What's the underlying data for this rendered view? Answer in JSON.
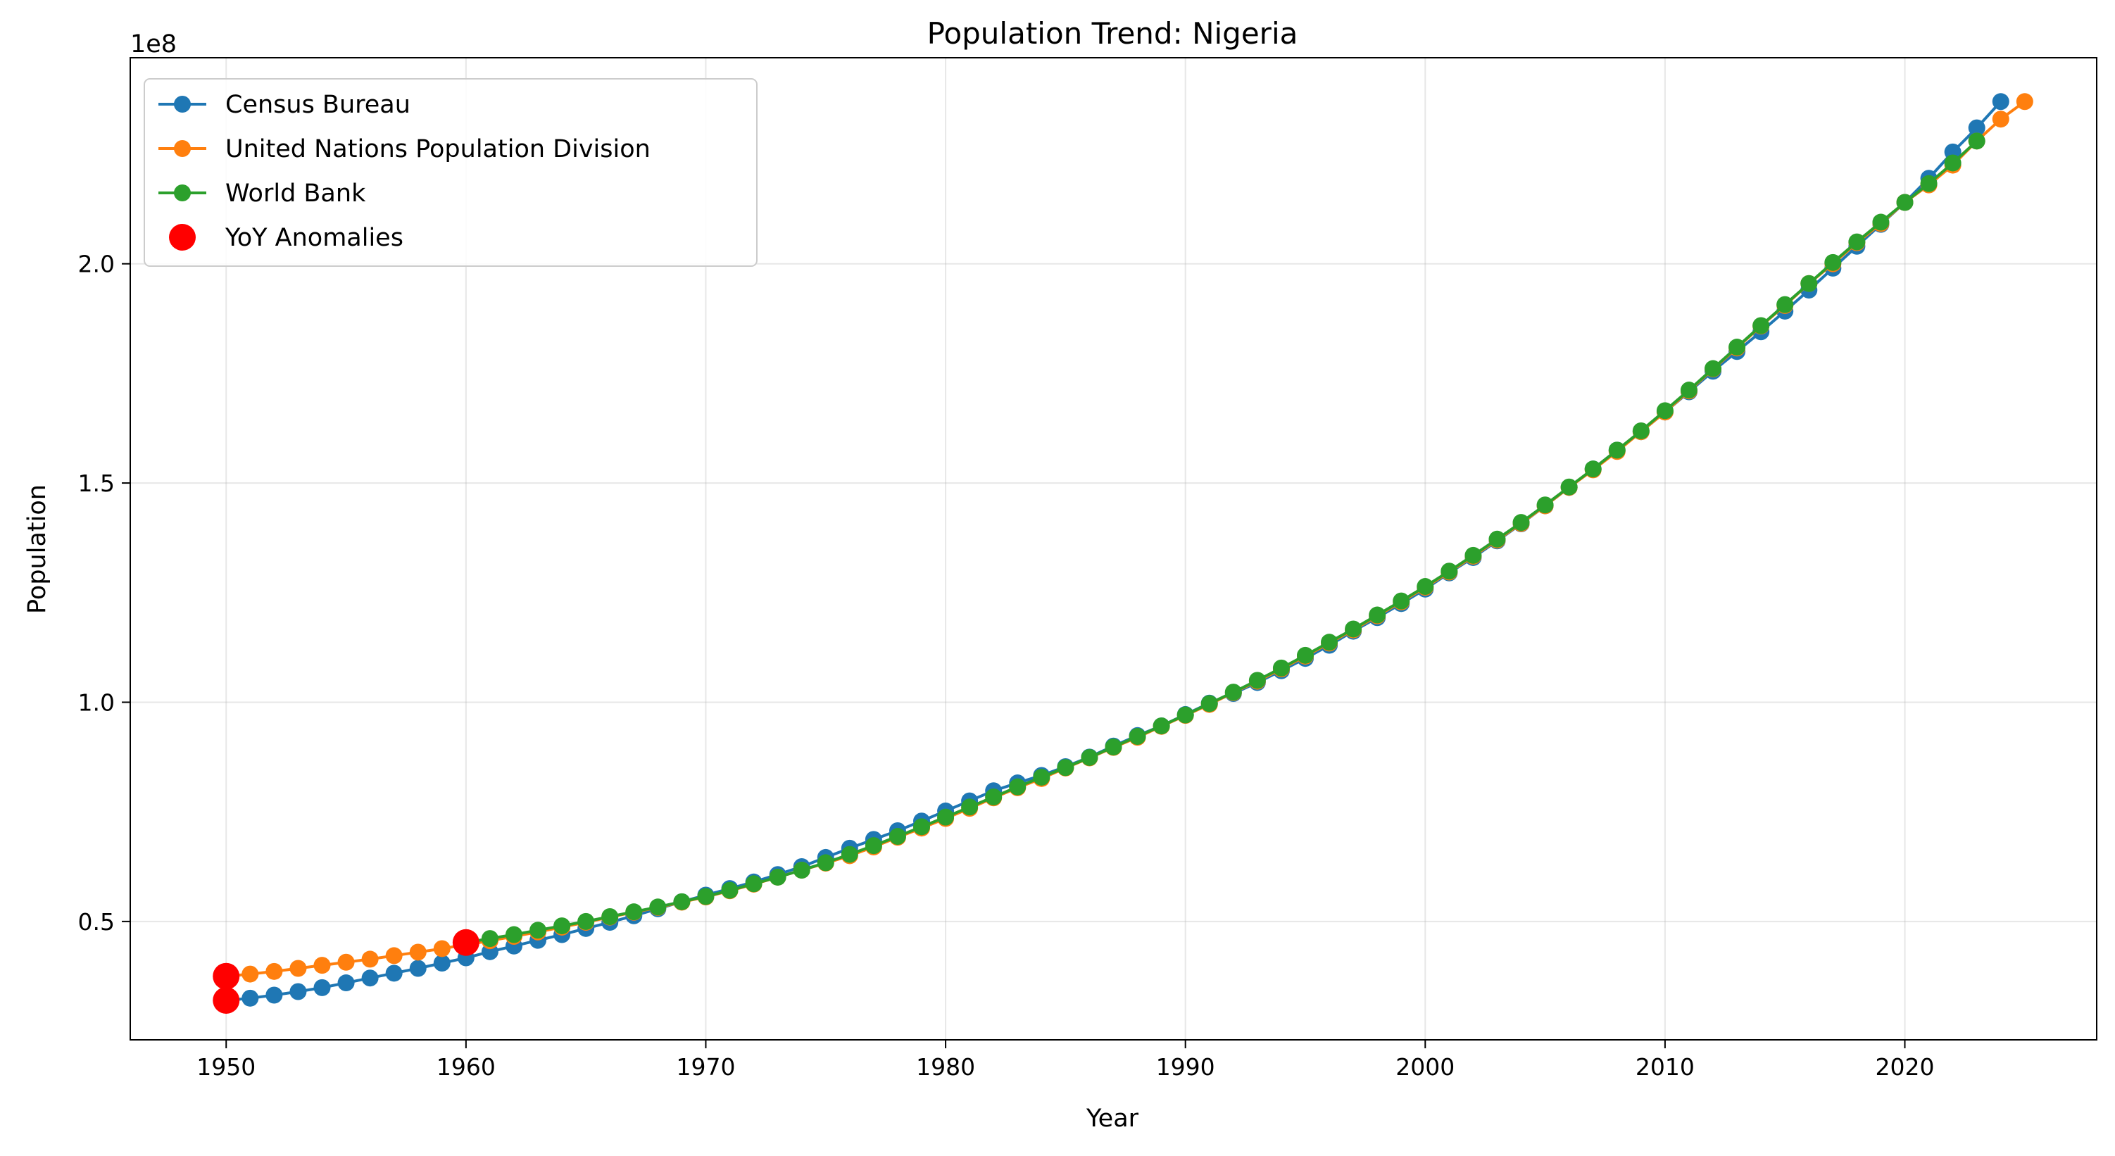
{
  "chart_data": {
    "type": "line",
    "title": "Population Trend: Nigeria",
    "xlabel": "Year",
    "ylabel": "Population",
    "y_offset_label": "1e8",
    "xlim": [
      1946,
      2028
    ],
    "ylim": [
      0.23,
      2.47
    ],
    "y_scale_factor": 100000000,
    "x_ticks": [
      1950,
      1960,
      1970,
      1980,
      1990,
      2000,
      2010,
      2020
    ],
    "x_tick_labels": [
      "1950",
      "1960",
      "1970",
      "1980",
      "1990",
      "2000",
      "2010",
      "2020"
    ],
    "y_ticks": [
      0.5,
      1.0,
      1.5,
      2.0
    ],
    "y_tick_labels": [
      "0.5",
      "1.0",
      "1.5",
      "2.0"
    ],
    "grid": true,
    "legend_placement": "top-left",
    "series": [
      {
        "name": "Census Bureau",
        "color": "#1f77b4",
        "marker": "circle",
        "x": [
          1950,
          1951,
          1952,
          1953,
          1954,
          1955,
          1956,
          1957,
          1958,
          1959,
          1960,
          1961,
          1962,
          1963,
          1964,
          1965,
          1966,
          1967,
          1968,
          1969,
          1970,
          1971,
          1972,
          1973,
          1974,
          1975,
          1976,
          1977,
          1978,
          1979,
          1980,
          1981,
          1982,
          1983,
          1984,
          1985,
          1986,
          1987,
          1988,
          1989,
          1990,
          1991,
          1992,
          1993,
          1994,
          1995,
          1996,
          1997,
          1998,
          1999,
          2000,
          2001,
          2002,
          2003,
          2004,
          2005,
          2006,
          2007,
          2008,
          2009,
          2010,
          2011,
          2012,
          2013,
          2014,
          2015,
          2016,
          2017,
          2018,
          2019,
          2020,
          2021,
          2022,
          2023,
          2024
        ],
        "values": [
          0.32,
          0.325,
          0.332,
          0.34,
          0.349,
          0.36,
          0.371,
          0.382,
          0.393,
          0.405,
          0.417,
          0.431,
          0.444,
          0.457,
          0.47,
          0.484,
          0.498,
          0.513,
          0.529,
          0.545,
          0.56,
          0.575,
          0.59,
          0.607,
          0.625,
          0.646,
          0.667,
          0.687,
          0.707,
          0.729,
          0.752,
          0.775,
          0.798,
          0.816,
          0.833,
          0.853,
          0.875,
          0.9,
          0.924,
          0.946,
          0.972,
          0.998,
          1.02,
          1.045,
          1.072,
          1.1,
          1.13,
          1.162,
          1.193,
          1.225,
          1.258,
          1.295,
          1.33,
          1.368,
          1.407,
          1.448,
          1.49,
          1.532,
          1.575,
          1.617,
          1.662,
          1.708,
          1.755,
          1.8,
          1.845,
          1.892,
          1.94,
          1.99,
          2.04,
          2.09,
          2.14,
          2.195,
          2.255,
          2.31,
          2.37
        ]
      },
      {
        "name": "United Nations Population Division",
        "color": "#ff7f0e",
        "marker": "circle",
        "x": [
          1950,
          1951,
          1952,
          1953,
          1954,
          1955,
          1956,
          1957,
          1958,
          1959,
          1960,
          1961,
          1962,
          1963,
          1964,
          1965,
          1966,
          1967,
          1968,
          1969,
          1970,
          1971,
          1972,
          1973,
          1974,
          1975,
          1976,
          1977,
          1978,
          1979,
          1980,
          1981,
          1982,
          1983,
          1984,
          1985,
          1986,
          1987,
          1988,
          1989,
          1990,
          1991,
          1992,
          1993,
          1994,
          1995,
          1996,
          1997,
          1998,
          1999,
          2000,
          2001,
          2002,
          2003,
          2004,
          2005,
          2006,
          2007,
          2008,
          2009,
          2010,
          2011,
          2012,
          2013,
          2014,
          2015,
          2016,
          2017,
          2018,
          2019,
          2020,
          2021,
          2022,
          2023,
          2024,
          2025
        ],
        "values": [
          0.375,
          0.38,
          0.386,
          0.393,
          0.4,
          0.407,
          0.414,
          0.422,
          0.43,
          0.438,
          0.447,
          0.456,
          0.466,
          0.476,
          0.487,
          0.498,
          0.51,
          0.521,
          0.532,
          0.544,
          0.556,
          0.57,
          0.585,
          0.601,
          0.617,
          0.633,
          0.65,
          0.67,
          0.692,
          0.713,
          0.735,
          0.758,
          0.782,
          0.805,
          0.826,
          0.85,
          0.873,
          0.897,
          0.92,
          0.945,
          0.97,
          0.995,
          1.022,
          1.048,
          1.076,
          1.105,
          1.135,
          1.165,
          1.197,
          1.229,
          1.262,
          1.297,
          1.333,
          1.37,
          1.408,
          1.448,
          1.49,
          1.53,
          1.572,
          1.617,
          1.662,
          1.71,
          1.76,
          1.808,
          1.858,
          1.905,
          1.955,
          2.0,
          2.048,
          2.092,
          2.14,
          2.18,
          2.225,
          2.28,
          2.33,
          2.37
        ]
      },
      {
        "name": "World Bank",
        "color": "#2ca02c",
        "marker": "circle",
        "x": [
          1960,
          1961,
          1962,
          1963,
          1964,
          1965,
          1966,
          1967,
          1968,
          1969,
          1970,
          1971,
          1972,
          1973,
          1974,
          1975,
          1976,
          1977,
          1978,
          1979,
          1980,
          1981,
          1982,
          1983,
          1984,
          1985,
          1986,
          1987,
          1988,
          1989,
          1990,
          1991,
          1992,
          1993,
          1994,
          1995,
          1996,
          1997,
          1998,
          1999,
          2000,
          2001,
          2002,
          2003,
          2004,
          2005,
          2006,
          2007,
          2008,
          2009,
          2010,
          2011,
          2012,
          2013,
          2014,
          2015,
          2016,
          2017,
          2018,
          2019,
          2020,
          2021,
          2022,
          2023
        ],
        "values": [
          0.452,
          0.461,
          0.47,
          0.48,
          0.49,
          0.5,
          0.511,
          0.522,
          0.533,
          0.545,
          0.557,
          0.571,
          0.586,
          0.601,
          0.617,
          0.634,
          0.653,
          0.673,
          0.694,
          0.716,
          0.738,
          0.761,
          0.784,
          0.807,
          0.829,
          0.851,
          0.874,
          0.898,
          0.922,
          0.946,
          0.971,
          0.997,
          1.023,
          1.05,
          1.078,
          1.107,
          1.137,
          1.167,
          1.199,
          1.231,
          1.264,
          1.299,
          1.335,
          1.372,
          1.41,
          1.45,
          1.491,
          1.532,
          1.575,
          1.619,
          1.665,
          1.712,
          1.761,
          1.81,
          1.859,
          1.907,
          1.955,
          2.003,
          2.05,
          2.095,
          2.14,
          2.183,
          2.23,
          2.28
        ]
      }
    ],
    "anomalies": {
      "name": "YoY Anomalies",
      "color": "#ff0000",
      "points": [
        {
          "x": 1950,
          "y": 0.32
        },
        {
          "x": 1950,
          "y": 0.375
        },
        {
          "x": 1960,
          "y": 0.452
        }
      ]
    }
  }
}
